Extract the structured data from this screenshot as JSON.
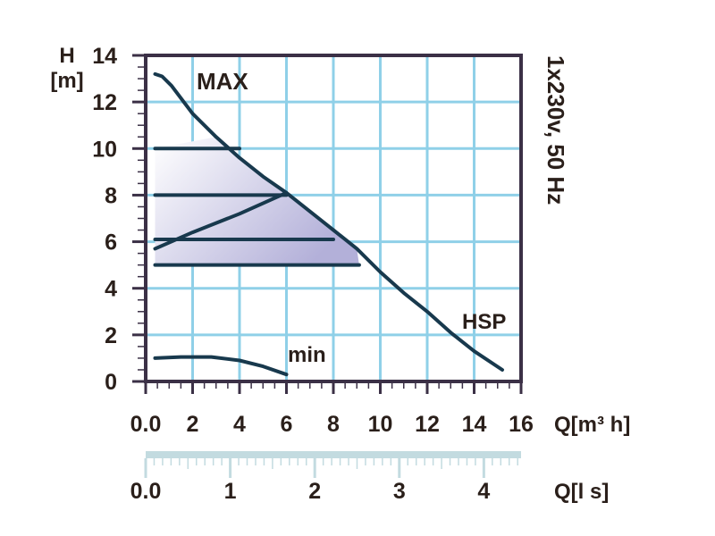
{
  "chart_data": {
    "type": "line",
    "title": "",
    "xlabel": "Q[m³ h]",
    "ylabel_line1": "H",
    "ylabel_line2": "[m]",
    "secondary_xlabel": "Q[l s]",
    "side_label": "1x230v, 50 Hz",
    "xlim": [
      0,
      16
    ],
    "ylim": [
      0,
      14
    ],
    "x_ticks": [
      "0.0",
      "2",
      "4",
      "6",
      "8",
      "10",
      "12",
      "14",
      "16"
    ],
    "y_ticks": [
      "0",
      "2",
      "4",
      "6",
      "8",
      "10",
      "12",
      "14"
    ],
    "secondary_xlim": [
      0,
      4.44
    ],
    "secondary_ticks": [
      "0.0",
      "1",
      "2",
      "3",
      "4"
    ],
    "grid": true,
    "annotations": {
      "max": "MAX",
      "min": "min",
      "hsp": "HSP"
    },
    "colors": {
      "grid": "#8fd0e8",
      "curve": "#18394d",
      "frame": "#3b3046",
      "fill": "#b3b0d9",
      "scale_bar": "#c3dbe0",
      "text": "#2a1f1a"
    },
    "series": [
      {
        "values": [
          [
            0.4,
            13.2
          ],
          [
            0.7,
            13.1
          ],
          [
            1.1,
            12.7
          ],
          [
            2.0,
            11.5
          ],
          [
            3.0,
            10.5
          ],
          [
            4.0,
            9.6
          ],
          [
            5.0,
            8.8
          ],
          [
            6.0,
            8.1
          ],
          [
            7.0,
            7.3
          ],
          [
            8.0,
            6.5
          ],
          [
            9.0,
            5.7
          ],
          [
            10.0,
            4.7
          ],
          [
            11.0,
            3.8
          ],
          [
            12.0,
            3.0
          ],
          [
            13.0,
            2.1
          ],
          [
            14.0,
            1.3
          ],
          [
            15.2,
            0.5
          ]
        ]
      },
      {
        "values": [
          [
            0.4,
            10.0
          ],
          [
            4.0,
            10.0
          ]
        ]
      },
      {
        "values": [
          [
            0.4,
            8.0
          ],
          [
            6.0,
            8.0
          ]
        ]
      },
      {
        "values": [
          [
            0.4,
            5.7
          ],
          [
            2.0,
            6.4
          ],
          [
            4.0,
            7.2
          ],
          [
            6.0,
            8.1
          ]
        ]
      },
      {
        "values": [
          [
            0.4,
            6.1
          ],
          [
            8.0,
            6.1
          ]
        ]
      },
      {
        "values": [
          [
            0.4,
            5.0
          ],
          [
            9.1,
            5.0
          ]
        ]
      },
      {
        "values": [
          [
            0.4,
            1.0
          ],
          [
            1.5,
            1.05
          ],
          [
            2.8,
            1.05
          ],
          [
            4.0,
            0.9
          ],
          [
            5.0,
            0.65
          ],
          [
            6.0,
            0.3
          ]
        ]
      }
    ]
  }
}
